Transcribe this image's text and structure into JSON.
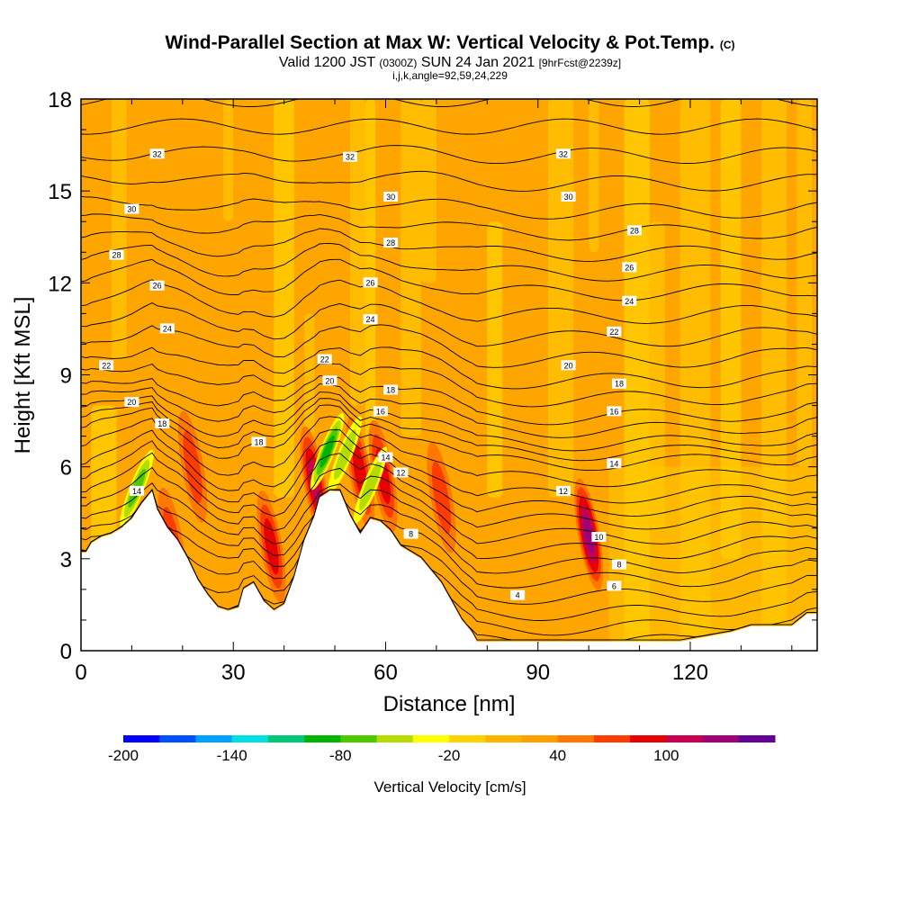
{
  "header": {
    "title_main": "Wind-Parallel Section at Max W: Vertical Velocity & Pot.Temp.",
    "title_unit": "(C)",
    "valid_prefix": "Valid 1200 JST",
    "valid_zulu": "(0300Z)",
    "valid_date": "SUN 24 Jan 2021",
    "valid_fcst": "[9hrFcst@2239z]",
    "indices": "i,j,k,angle=92,59,24,229"
  },
  "chart_data": {
    "type": "cross-section contour",
    "title": "Wind-Parallel Section at Max W: Vertical Velocity & Pot.Temp.",
    "xlabel": "Distance [nm]",
    "ylabel": "Height [Kft MSL]",
    "xlim": [
      0,
      145
    ],
    "ylim": [
      0,
      18
    ],
    "x_ticks": [
      "0",
      "30",
      "60",
      "90",
      "120"
    ],
    "x_tick_values": [
      0,
      30,
      60,
      90,
      120
    ],
    "y_ticks": [
      "0",
      "3",
      "6",
      "9",
      "12",
      "15",
      "18"
    ],
    "y_tick_values": [
      0,
      3,
      6,
      9,
      12,
      15,
      18
    ],
    "background_color": "#ffa500",
    "colorbar": {
      "title": "Vertical Velocity [cm/s]",
      "labels": [
        "-200",
        "-140",
        "-80",
        "-20",
        "40",
        "100"
      ],
      "label_values": [
        -200,
        -140,
        -80,
        -20,
        40,
        100
      ],
      "colors": [
        "#0000ff",
        "#0050ff",
        "#00a0ff",
        "#00e0e0",
        "#00c878",
        "#00b400",
        "#50c800",
        "#b4dc00",
        "#ffff00",
        "#ffd200",
        "#ffb400",
        "#ffa000",
        "#ff7800",
        "#ff3c00",
        "#e60000",
        "#c80050",
        "#a00078",
        "#640096"
      ]
    },
    "terrain": [
      [
        0,
        3.2
      ],
      [
        1,
        3.2
      ],
      [
        2,
        3.5
      ],
      [
        4,
        3.7
      ],
      [
        6,
        3.8
      ],
      [
        8,
        4.0
      ],
      [
        10,
        4.3
      ],
      [
        12,
        4.8
      ],
      [
        14,
        5.2
      ],
      [
        15,
        4.6
      ],
      [
        17,
        4.0
      ],
      [
        19,
        3.6
      ],
      [
        21,
        3.0
      ],
      [
        23,
        2.3
      ],
      [
        25,
        1.8
      ],
      [
        27,
        1.4
      ],
      [
        29,
        1.3
      ],
      [
        31,
        1.4
      ],
      [
        32,
        2.0
      ],
      [
        34,
        2.2
      ],
      [
        36,
        1.6
      ],
      [
        38,
        1.3
      ],
      [
        40,
        1.5
      ],
      [
        42,
        2.4
      ],
      [
        44,
        3.6
      ],
      [
        46,
        4.4
      ],
      [
        47,
        5.0
      ],
      [
        49,
        5.2
      ],
      [
        51,
        5.2
      ],
      [
        53,
        4.4
      ],
      [
        55,
        3.8
      ],
      [
        57,
        4.3
      ],
      [
        59,
        4.2
      ],
      [
        61,
        3.9
      ],
      [
        63,
        3.4
      ],
      [
        65,
        3.2
      ],
      [
        67,
        3.0
      ],
      [
        69,
        2.6
      ],
      [
        71,
        2.2
      ],
      [
        73,
        1.6
      ],
      [
        75,
        1.0
      ],
      [
        77,
        0.6
      ],
      [
        78,
        0.3
      ],
      [
        100,
        0.3
      ],
      [
        118,
        0.3
      ],
      [
        128,
        0.6
      ],
      [
        132,
        0.8
      ],
      [
        140,
        0.8
      ],
      [
        143,
        1.2
      ],
      [
        145,
        1.2
      ]
    ],
    "isentropes": [
      {
        "theta": 32,
        "base": 16.2,
        "label_at": [
          [
            15,
            16.2
          ],
          [
            53,
            16.1
          ],
          [
            95,
            16.2
          ]
        ]
      },
      {
        "theta": 30,
        "base": 14.5,
        "label_at": [
          [
            10,
            14.4
          ],
          [
            61,
            14.8
          ],
          [
            96,
            14.8
          ]
        ]
      },
      {
        "theta": 28,
        "base": 13.2,
        "label_at": [
          [
            7,
            12.9
          ],
          [
            61,
            13.3
          ],
          [
            109,
            13.7
          ]
        ]
      },
      {
        "theta": 26,
        "base": 12.0,
        "label_at": [
          [
            15,
            11.9
          ],
          [
            57,
            12.0
          ],
          [
            108,
            12.5
          ]
        ]
      },
      {
        "theta": 24,
        "base": 10.6,
        "label_at": [
          [
            17,
            10.5
          ],
          [
            57,
            10.8
          ],
          [
            108,
            11.4
          ]
        ]
      },
      {
        "theta": 22,
        "base": 9.3,
        "label_at": [
          [
            5,
            9.3
          ],
          [
            48,
            9.5
          ],
          [
            105,
            10.4
          ]
        ]
      },
      {
        "theta": 20,
        "base": 8.2,
        "label_at": [
          [
            10,
            8.1
          ],
          [
            49,
            8.8
          ],
          [
            96,
            9.3
          ]
        ]
      },
      {
        "theta": 18,
        "base": 7.4,
        "label_at": [
          [
            16,
            7.4
          ],
          [
            35,
            6.8
          ],
          [
            61,
            8.5
          ],
          [
            106,
            8.7
          ]
        ]
      },
      {
        "theta": 16,
        "base": 6.8,
        "label_at": [
          [
            59,
            7.8
          ],
          [
            105,
            7.8
          ]
        ]
      },
      {
        "theta": 14,
        "base": 5.8,
        "label_at": [
          [
            11,
            5.2
          ],
          [
            60,
            6.3
          ],
          [
            105,
            6.1
          ]
        ]
      },
      {
        "theta": 12,
        "base": 5.0,
        "label_at": [
          [
            63,
            5.8
          ],
          [
            95,
            5.2
          ]
        ]
      },
      {
        "theta": 10,
        "base": 4.1,
        "label_at": [
          [
            102,
            3.7
          ]
        ]
      },
      {
        "theta": 8,
        "base": 3.2,
        "label_at": [
          [
            65,
            3.8
          ],
          [
            106,
            2.8
          ]
        ]
      },
      {
        "theta": 6,
        "base": 2.2,
        "label_at": [
          [
            105,
            2.1
          ]
        ]
      },
      {
        "theta": 4,
        "base": 1.3,
        "label_at": [
          [
            86,
            1.8
          ]
        ]
      }
    ],
    "updraft_cores": [
      {
        "x": 100,
        "y": 3.8,
        "max_w": 100
      },
      {
        "x": 46,
        "y": 5.5,
        "max_w": 70
      },
      {
        "x": 37.5,
        "y": 3.4,
        "max_w": 60
      },
      {
        "x": 55,
        "y": 5.8,
        "max_w": 50
      },
      {
        "x": 59.5,
        "y": 5.7,
        "max_w": 50
      },
      {
        "x": 22,
        "y": 6.0,
        "max_w": 30
      },
      {
        "x": 18,
        "y": 3.5,
        "max_w": 30
      },
      {
        "x": 71,
        "y": 5.0,
        "max_w": 30
      }
    ],
    "downdraft_cores": [
      {
        "x": 11,
        "y": 5.3,
        "min_w": -60
      },
      {
        "x": 48.5,
        "y": 6.5,
        "min_w": -80
      },
      {
        "x": 52,
        "y": 6.4,
        "min_w": -40
      },
      {
        "x": 57,
        "y": 5.4,
        "min_w": -40
      }
    ]
  }
}
